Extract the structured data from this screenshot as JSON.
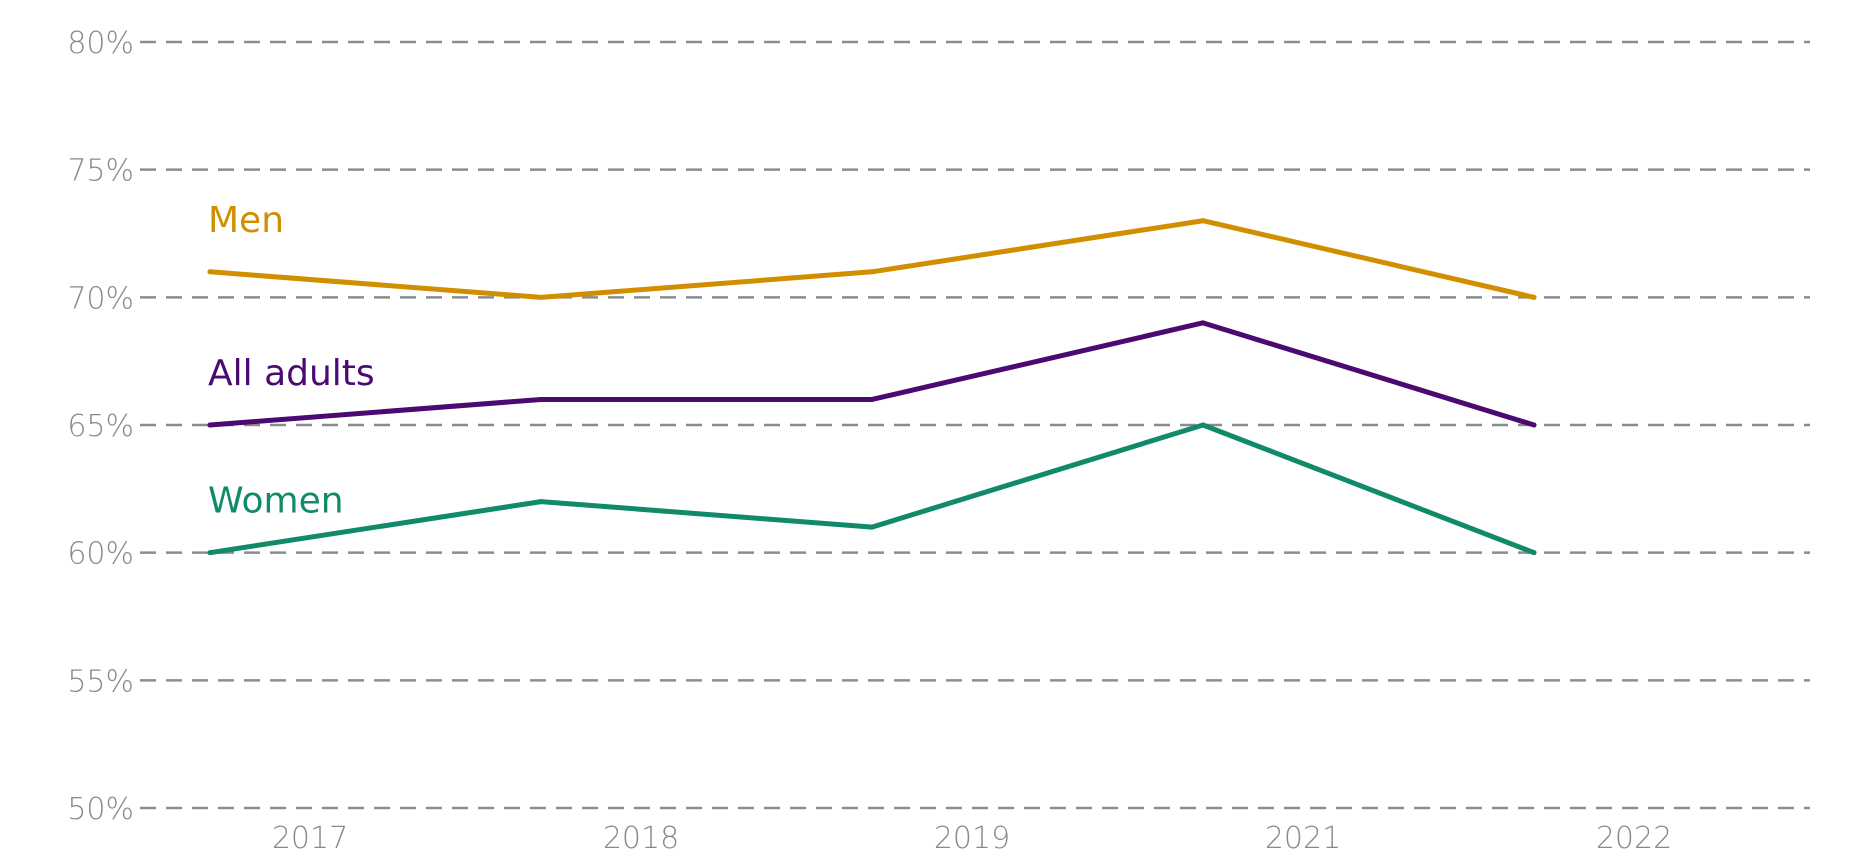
{
  "chart_data": {
    "type": "line",
    "categories": [
      "2017",
      "2018",
      "2019",
      "2021",
      "2022"
    ],
    "series": [
      {
        "name": "Men",
        "values": [
          71,
          70,
          71,
          73,
          70
        ],
        "color": "#d18f00"
      },
      {
        "name": "All adults",
        "values": [
          65,
          66,
          66,
          69,
          65
        ],
        "color": "#4b0a72"
      },
      {
        "name": "Women",
        "values": [
          60,
          62,
          61,
          65,
          60
        ],
        "color": "#108a68"
      }
    ],
    "ylim": [
      50,
      80
    ],
    "yticks": [
      50,
      55,
      60,
      65,
      70,
      75,
      80
    ],
    "ytick_format": "%",
    "grid": "horizontal dashed",
    "legend": "inline labels above line starts",
    "title": "",
    "xlabel": "",
    "ylabel": ""
  }
}
